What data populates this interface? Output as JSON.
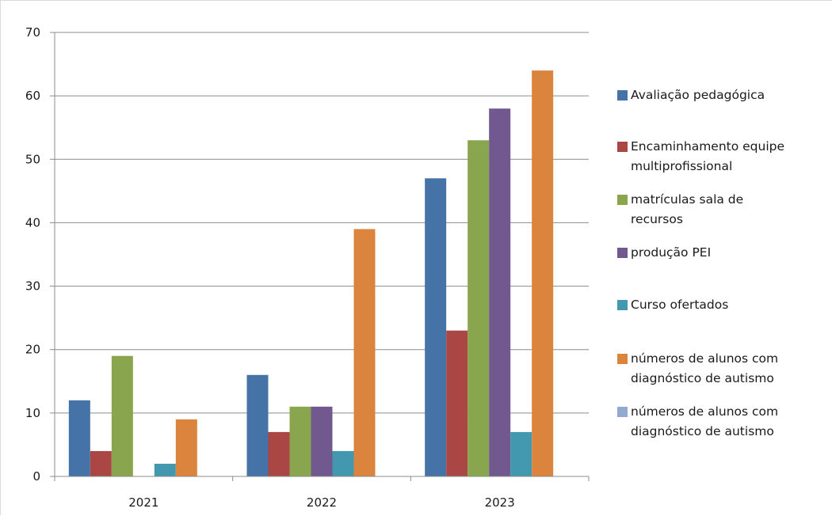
{
  "chart_data": {
    "type": "bar",
    "categories": [
      "2021",
      "2022",
      "2023"
    ],
    "ylim": [
      0,
      70
    ],
    "yticks": [
      0,
      10,
      20,
      30,
      40,
      50,
      60,
      70
    ],
    "grid": true,
    "legend_position": "right",
    "series": [
      {
        "name": "Avaliação pedagógica",
        "color": "#4573a7",
        "values": [
          12,
          16,
          47
        ]
      },
      {
        "name": "Encaminhamento equipe multiprofissional",
        "color": "#aa4643",
        "values": [
          4,
          7,
          23
        ]
      },
      {
        "name": "matrículas sala de recursos",
        "color": "#89a54e",
        "values": [
          19,
          11,
          53
        ]
      },
      {
        "name": "produção PEI",
        "color": "#71588f",
        "values": [
          0,
          11,
          58
        ]
      },
      {
        "name": "Curso ofertados",
        "color": "#4198af",
        "values": [
          2,
          4,
          7
        ]
      },
      {
        "name": "números de alunos com diagnóstico de autismo",
        "color": "#db843d",
        "values": [
          9,
          39,
          64
        ]
      },
      {
        "name": "números de alunos com diagnóstico de autismo",
        "color": "#93a9cf",
        "values": [
          0,
          0,
          0
        ]
      }
    ]
  }
}
